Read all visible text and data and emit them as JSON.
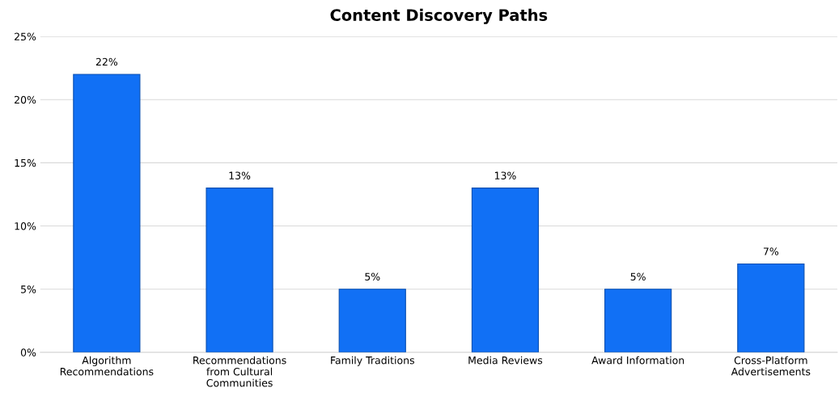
{
  "chart_data": {
    "type": "bar",
    "title": "Content Discovery Paths",
    "categories": [
      "Algorithm\nRecommendations",
      "Recommendations\nfrom Cultural\nCommunities",
      "Family Traditions",
      "Media Reviews",
      "Award Information",
      "Cross-Platform\nAdvertisements"
    ],
    "values": [
      22,
      13,
      5,
      13,
      5,
      7
    ],
    "value_labels": [
      "22%",
      "13%",
      "5%",
      "13%",
      "5%",
      "7%"
    ],
    "color": "#1170f5",
    "ylim": [
      0,
      25
    ],
    "yticks": [
      {
        "value": 0,
        "label": "0%"
      },
      {
        "value": 5,
        "label": "5%"
      },
      {
        "value": 10,
        "label": "10%"
      },
      {
        "value": 15,
        "label": "15%"
      },
      {
        "value": 20,
        "label": "20%"
      },
      {
        "value": 25,
        "label": "25%"
      }
    ],
    "grid": "y",
    "legend": false
  }
}
